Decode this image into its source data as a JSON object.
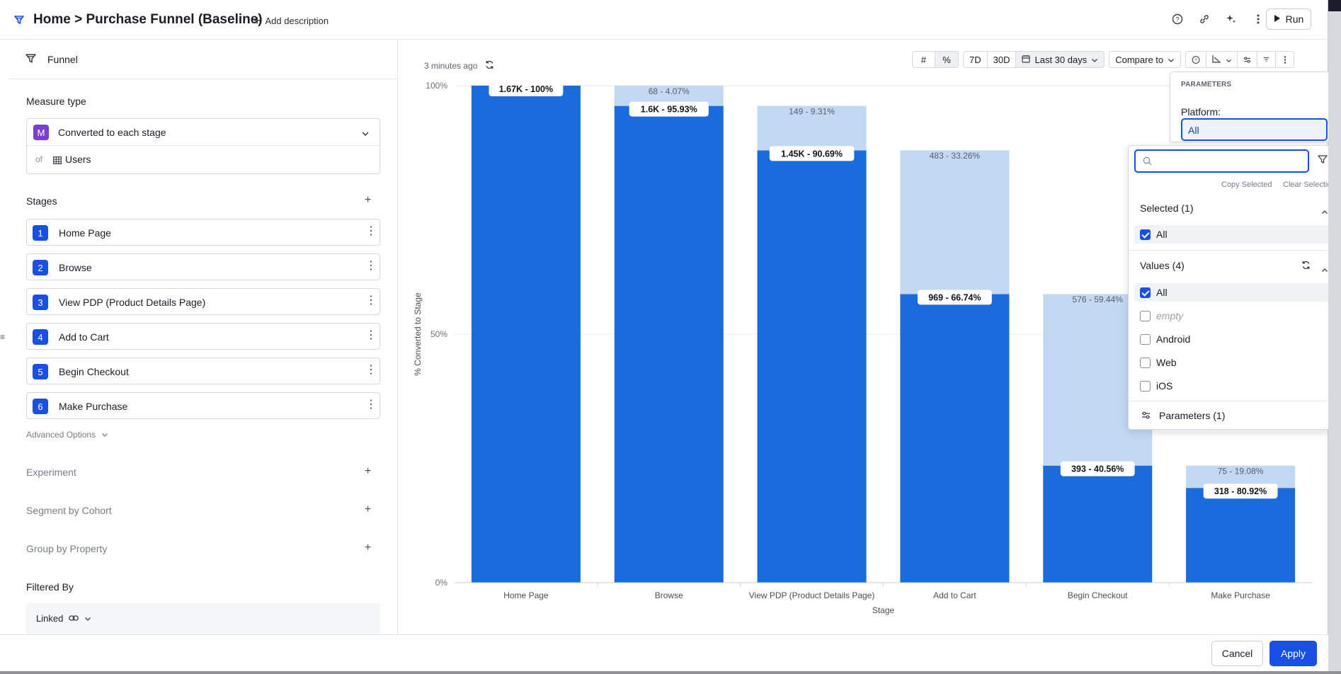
{
  "header": {
    "title": "Home > Purchase Funnel (Baseline)",
    "add_description": "Add description",
    "run_label": "Run",
    "icons": [
      "help-icon",
      "link-icon",
      "sparkle-icon",
      "more-vertical-icon"
    ]
  },
  "left_panel": {
    "panel_label": "Funnel",
    "measure_type_title": "Measure type",
    "measure_badge": "M",
    "measure_value": "Converted to each stage",
    "of_label": "of",
    "of_value": "Users",
    "stages_title": "Stages",
    "stages": [
      {
        "num": "1",
        "name": "Home Page"
      },
      {
        "num": "2",
        "name": "Browse"
      },
      {
        "num": "3",
        "name": "View PDP (Product Details Page)"
      },
      {
        "num": "4",
        "name": "Add to Cart"
      },
      {
        "num": "5",
        "name": "Begin Checkout"
      },
      {
        "num": "6",
        "name": "Make Purchase"
      }
    ],
    "advanced_options": "Advanced Options",
    "experiment": "Experiment",
    "segment_by_cohort": "Segment by Cohort",
    "group_by_property": "Group by Property",
    "filtered_by": "Filtered By",
    "linked": "Linked"
  },
  "chart_toolbar": {
    "updated": "3 minutes ago",
    "range_7d": "7D",
    "range_30d": "30D",
    "date_range": "Last 30 days",
    "compare_to": "Compare to"
  },
  "chart_data": {
    "type": "bar",
    "stacked": true,
    "xlabel": "Stage",
    "ylabel": "% Converted to Stage",
    "ylim": [
      0,
      100
    ],
    "yticks": [
      "0%",
      "50%",
      "100%"
    ],
    "categories": [
      "Home Page",
      "Browse",
      "View PDP (Product Details Page)",
      "Add to Cart",
      "Begin Checkout",
      "Make Purchase"
    ],
    "series": [
      {
        "values": [
          100,
          95.93,
          86.99,
          58.06,
          23.55,
          19.06
        ],
        "labels": [
          "1.67K - 100%",
          "1.6K - 95.93%",
          "1.45K - 90.69%",
          "969 - 66.74%",
          "393 - 40.56%",
          "318 - 80.92%"
        ],
        "color": "#1a6bdb"
      },
      {
        "values": [
          0,
          4.07,
          8.94,
          28.93,
          34.51,
          4.49
        ],
        "labels": [
          "",
          "68 - 4.07%",
          "149 - 9.31%",
          "483 - 33.26%",
          "576 - 59.44%",
          "75 - 19.08%"
        ],
        "color": "#c3d8f3"
      }
    ],
    "grid": true
  },
  "parameters_panel": {
    "title": "PARAMETERS",
    "platform_label": "Platform:",
    "platform_value": "All"
  },
  "dropdown": {
    "search_placeholder": "",
    "copy_selected": "Copy Selected",
    "clear_selection": "Clear Selection",
    "selected_title": "Selected (1)",
    "selected_items": [
      {
        "label": "All",
        "checked": true
      }
    ],
    "values_title": "Values (4)",
    "values": [
      {
        "label": "All",
        "checked": true
      },
      {
        "label": "empty",
        "checked": false
      },
      {
        "label": "Android",
        "checked": false
      },
      {
        "label": "Web",
        "checked": false
      },
      {
        "label": "iOS",
        "checked": false
      }
    ],
    "parameters_link": "Parameters (1)"
  },
  "footer": {
    "cancel": "Cancel",
    "apply": "Apply"
  },
  "colors": {
    "accent": "#1a4fe3",
    "bar_primary": "#1a6bdb",
    "bar_secondary": "#c3d8f3",
    "measure_badge": "#7b3fd0"
  }
}
